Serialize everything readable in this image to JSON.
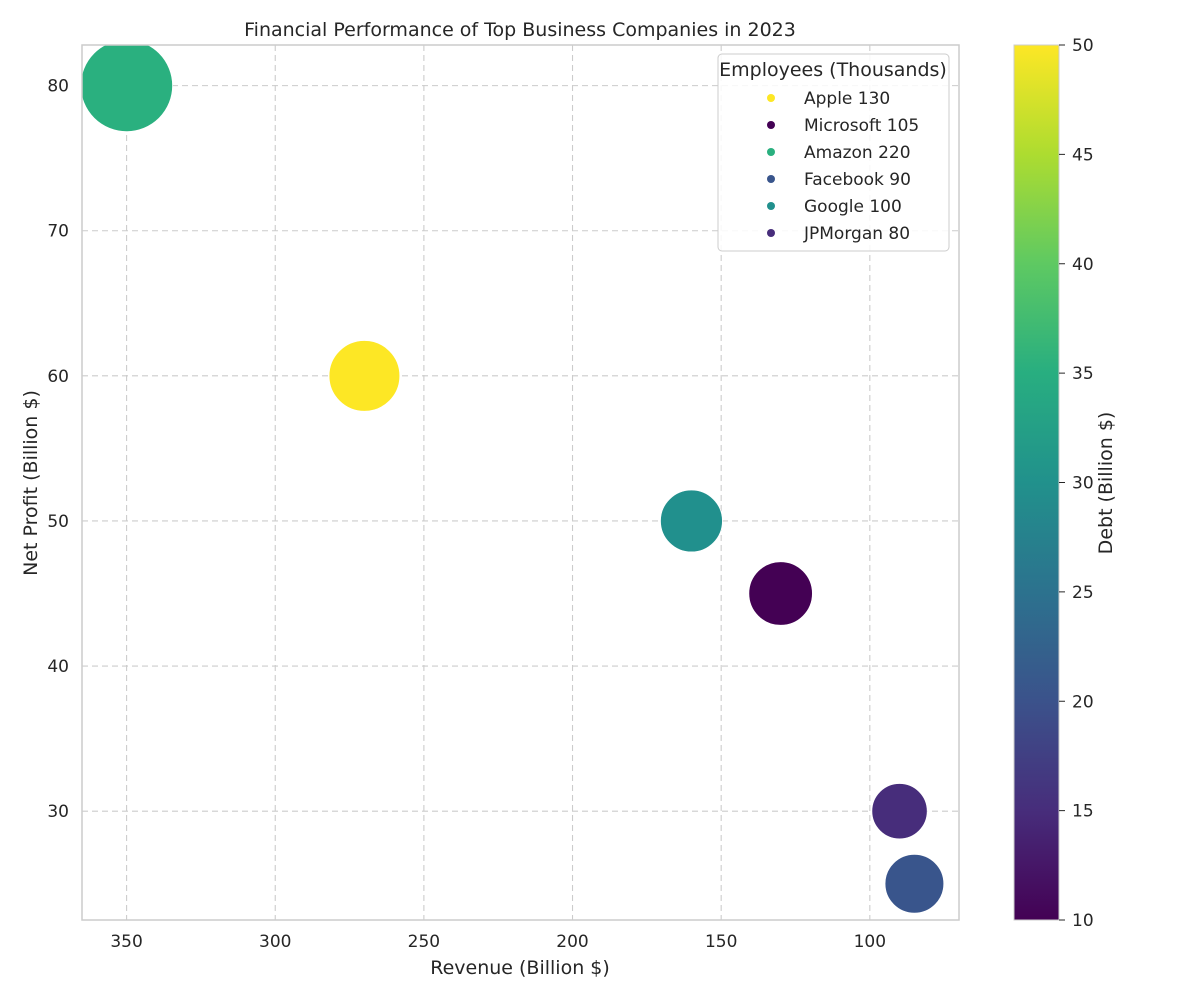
{
  "chart_data": {
    "type": "scatter",
    "title": "Financial Performance of Top Business Companies in 2023",
    "xlabel": "Revenue (Billion $)",
    "ylabel": "Net Profit (Billion $)",
    "xlim": [
      365,
      70
    ],
    "ylim": [
      22.5,
      82.8
    ],
    "x_inverted": true,
    "xticks": [
      350,
      300,
      250,
      200,
      150,
      100
    ],
    "yticks": [
      30,
      40,
      50,
      60,
      70,
      80
    ],
    "grid": true,
    "legend_title": "Employees (Thousands)",
    "legend_position": "top-right",
    "colorbar": {
      "label": "Debt (Billion $)",
      "min": 10,
      "max": 50,
      "ticks": [
        10,
        15,
        20,
        25,
        30,
        35,
        40,
        45,
        50
      ],
      "colormap": "viridis"
    },
    "points": [
      {
        "company": "Apple",
        "employees": 130,
        "legend": "Apple 130",
        "revenue": 270,
        "net_profit": 60,
        "debt": 50,
        "color": "#fde725"
      },
      {
        "company": "Microsoft",
        "employees": 105,
        "legend": "Microsoft 105",
        "revenue": 130,
        "net_profit": 45,
        "debt": 10,
        "color": "#440154"
      },
      {
        "company": "Amazon",
        "employees": 220,
        "legend": "Amazon 220",
        "revenue": 350,
        "net_profit": 80,
        "debt": 35,
        "color": "#2ab07f"
      },
      {
        "company": "Facebook",
        "employees": 90,
        "legend": "Facebook 90",
        "revenue": 85,
        "net_profit": 25,
        "debt": 20,
        "color": "#39558c"
      },
      {
        "company": "Google",
        "employees": 100,
        "legend": "Google 100",
        "revenue": 160,
        "net_profit": 50,
        "debt": 30,
        "color": "#21908d"
      },
      {
        "company": "JPMorgan",
        "employees": 80,
        "legend": "JPMorgan 80",
        "revenue": 90,
        "net_profit": 30,
        "debt": 15,
        "color": "#472d7b"
      }
    ]
  }
}
